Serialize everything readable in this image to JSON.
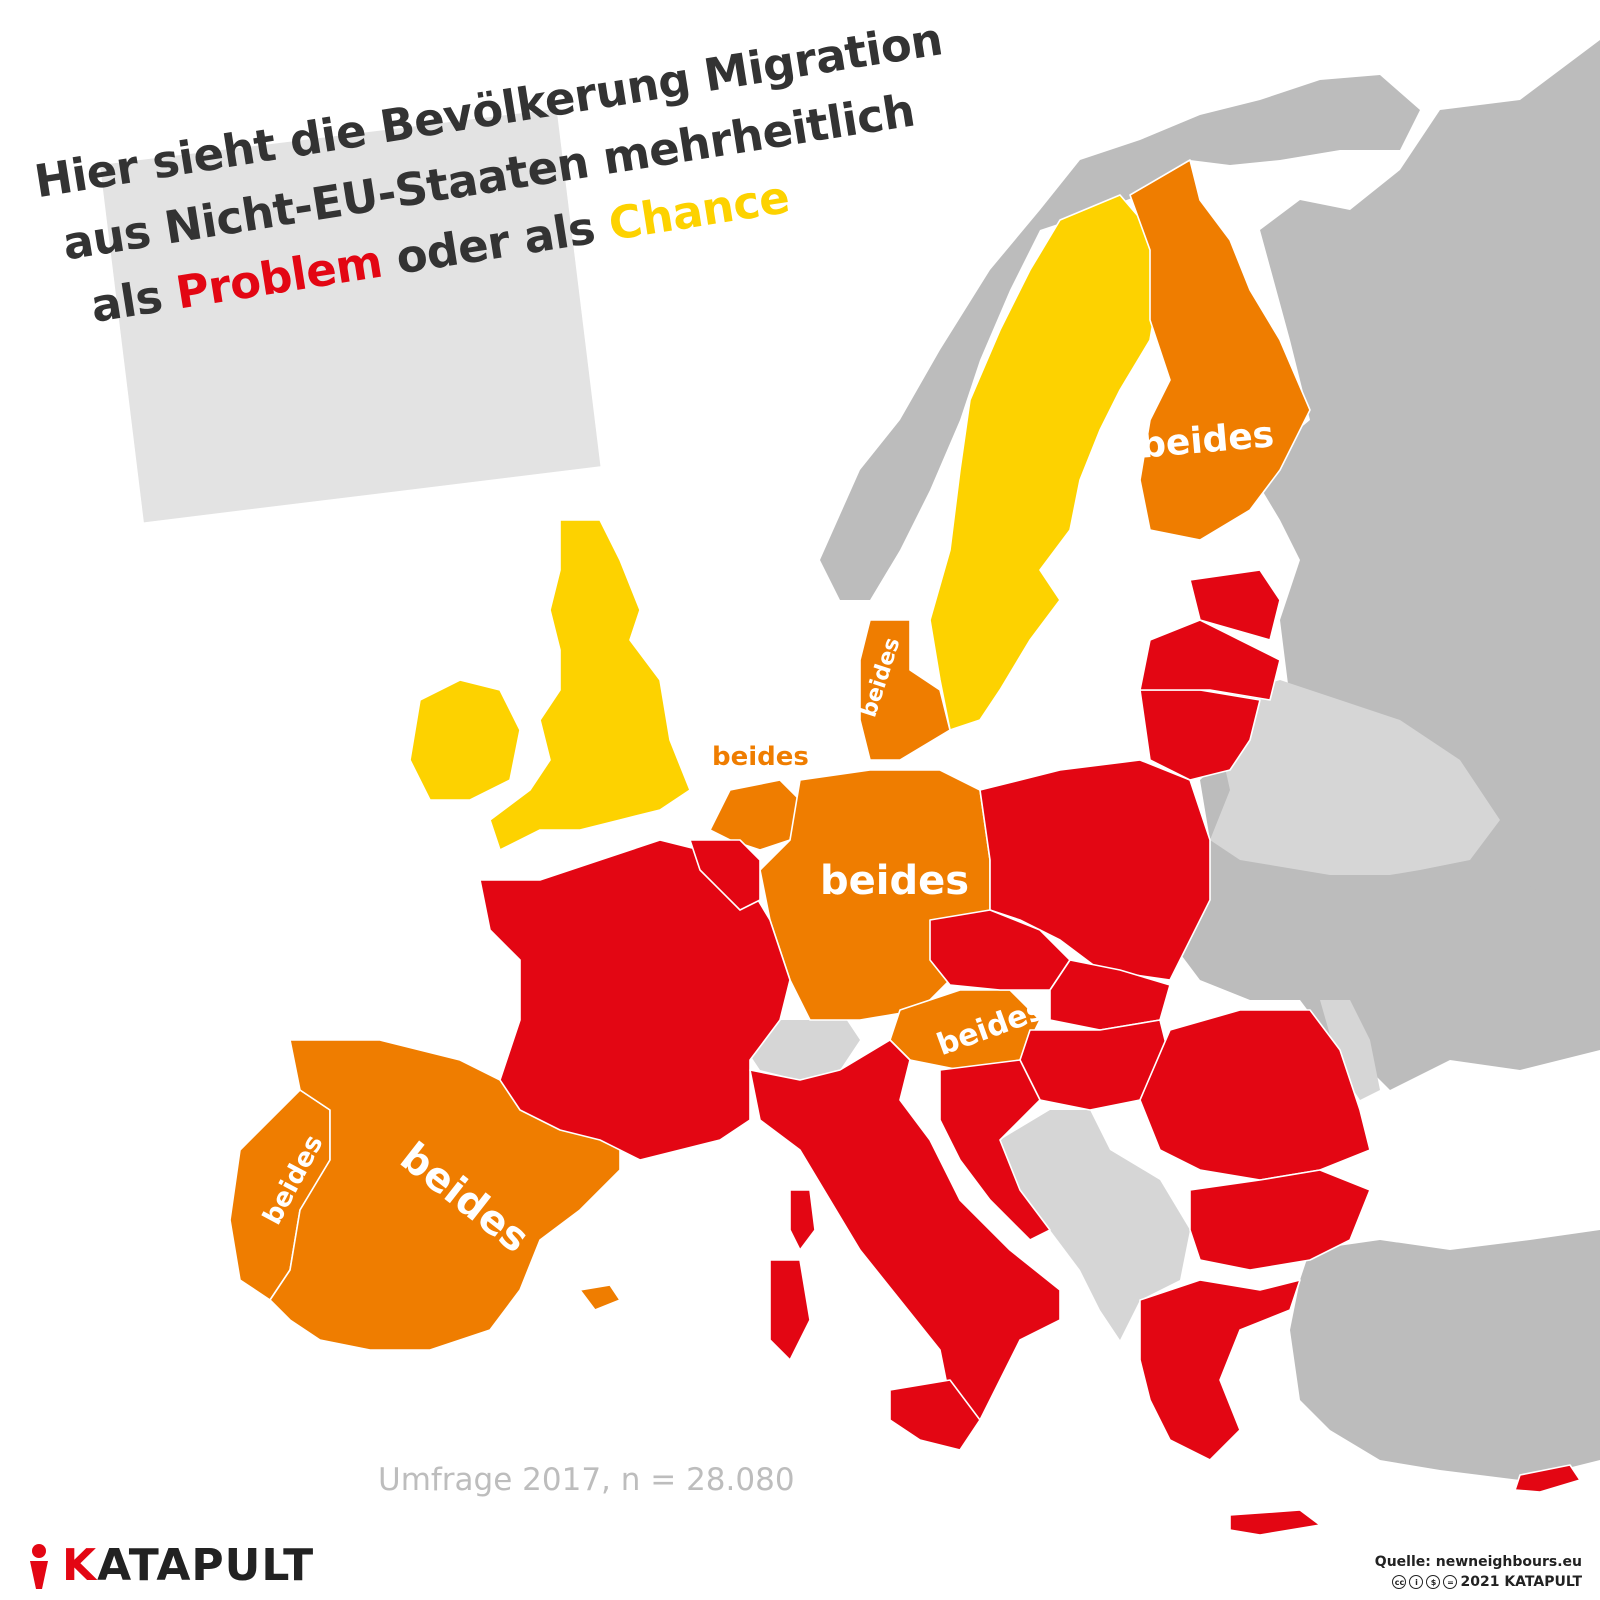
{
  "title": {
    "line1": "Hier sieht die Bevölkerung Migration",
    "line2": "aus Nicht-EU-Staaten mehrheitlich",
    "line3_prefix": "als",
    "line3_problem": "Problem",
    "line3_middle": "oder als",
    "line3_chance": "Chance"
  },
  "colors": {
    "problem": "#e30613",
    "both": "#ef7d00",
    "chance": "#fdd200",
    "non_eu": "#bcbcbc",
    "no_data": "#d6d6d6"
  },
  "labels": {
    "finland": "beides",
    "denmark": "beides",
    "netherlands": "beides",
    "germany": "beides",
    "austria": "beides",
    "portugal": "beides",
    "spain": "beides"
  },
  "survey_note": "Umfrage 2017, n = 28.080",
  "logo": {
    "first_letter": "K",
    "rest": "ATAPULT"
  },
  "source": {
    "line1": "Quelle: newneighbours.eu",
    "line2": "2021 KATAPULT",
    "icons": [
      "cc-icon",
      "by-icon",
      "nc-icon",
      "nd-icon"
    ]
  }
}
